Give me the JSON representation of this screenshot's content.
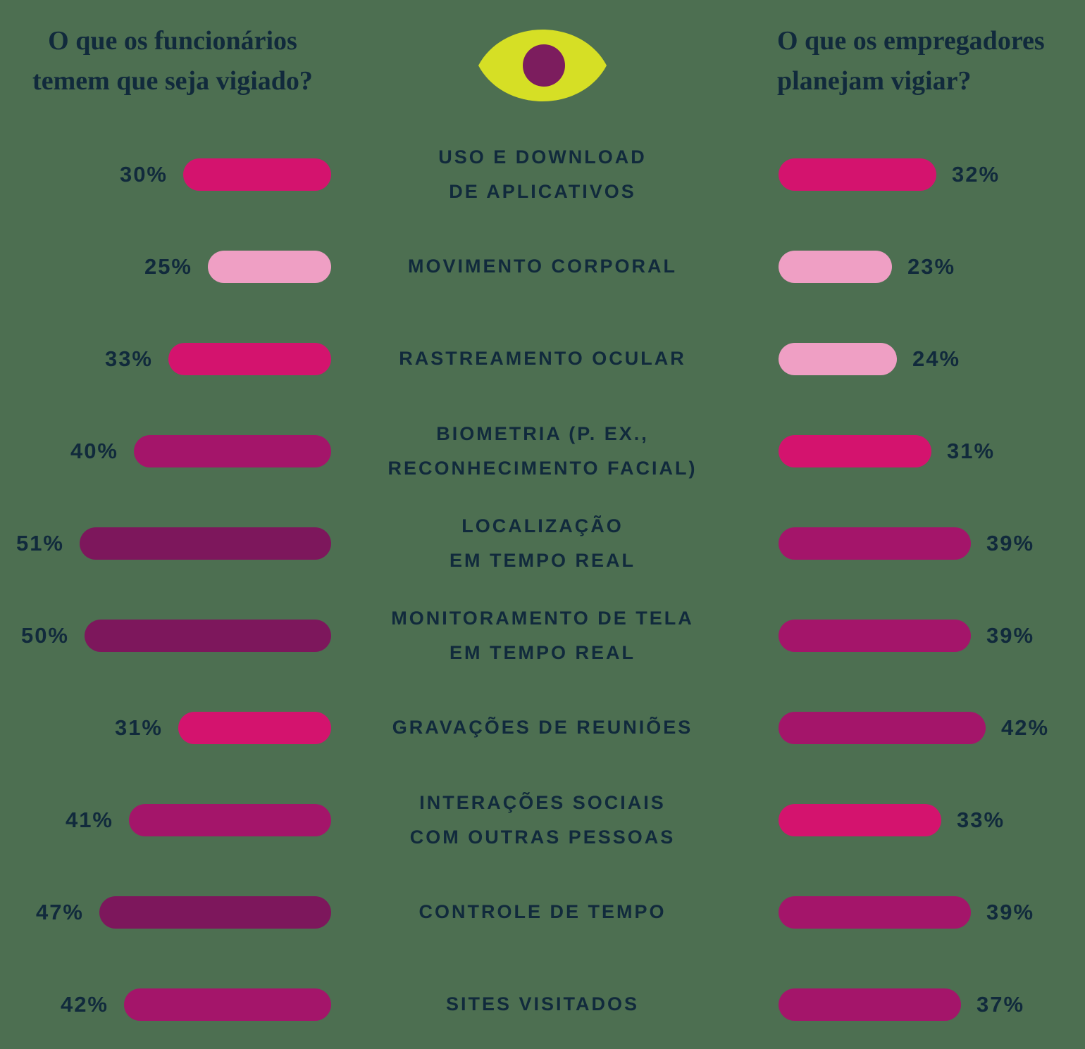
{
  "page": {
    "background_color": "#4d6f51",
    "text_color": "#112a3c"
  },
  "header": {
    "left_title_line1": "O que os funcionários",
    "left_title_line2": "temem que seja vigiado?",
    "right_title_line1": "O que os empregadores",
    "right_title_line2": "planejam vigiar?"
  },
  "eye_icon": {
    "name": "eye-icon",
    "body_color": "#d6df25",
    "pupil_color": "#7c1d5e"
  },
  "palette": {
    "light_pink": "#ef9fc4",
    "bright_pink": "#d4136e",
    "dark_magenta": "#a4156a",
    "darkest_plum": "#7d175c"
  },
  "chart_data": {
    "type": "bar",
    "orientation": "horizontal-mirrored",
    "unit": "%",
    "xlim": [
      0,
      55
    ],
    "grid": false,
    "legend_position": "top-as-questions",
    "categories": [
      [
        "USO E DOWNLOAD",
        "DE APLICATIVOS"
      ],
      [
        "MOVIMENTO CORPORAL"
      ],
      [
        "RASTREAMENTO OCULAR"
      ],
      [
        "BIOMETRIA (P. EX.,",
        "RECONHECIMENTO FACIAL)"
      ],
      [
        "LOCALIZAÇÃO",
        "EM TEMPO REAL"
      ],
      [
        "MONITORAMENTO DE TELA",
        "EM TEMPO REAL"
      ],
      [
        "GRAVAÇÕES DE REUNIÕES"
      ],
      [
        "INTERAÇÕES SOCIAIS",
        "COM OUTRAS PESSOAS"
      ],
      [
        "CONTROLE DE TEMPO"
      ],
      [
        "SITES VISITADOS"
      ]
    ],
    "series": [
      {
        "name": "employees-fear",
        "title": "O que os funcionários temem que seja vigiado?",
        "side": "left",
        "values": [
          30,
          25,
          33,
          40,
          51,
          50,
          31,
          41,
          47,
          42
        ],
        "labels": [
          "30%",
          "25%",
          "33%",
          "40%",
          "51%",
          "50%",
          "31%",
          "41%",
          "47%",
          "42%"
        ],
        "colors": [
          "#d4136e",
          "#ef9fc4",
          "#d4136e",
          "#a4156a",
          "#7d175c",
          "#7d175c",
          "#d4136e",
          "#a4156a",
          "#7d175c",
          "#a4156a"
        ]
      },
      {
        "name": "employers-plan",
        "title": "O que os empregadores planejam vigiar?",
        "side": "right",
        "values": [
          32,
          23,
          24,
          31,
          39,
          39,
          42,
          33,
          39,
          37
        ],
        "labels": [
          "32%",
          "23%",
          "24%",
          "31%",
          "39%",
          "39%",
          "42%",
          "33%",
          "39%",
          "37%"
        ],
        "colors": [
          "#d4136e",
          "#ef9fc4",
          "#ef9fc4",
          "#d4136e",
          "#a4156a",
          "#a4156a",
          "#a4156a",
          "#d4136e",
          "#a4156a",
          "#a4156a"
        ]
      }
    ]
  }
}
